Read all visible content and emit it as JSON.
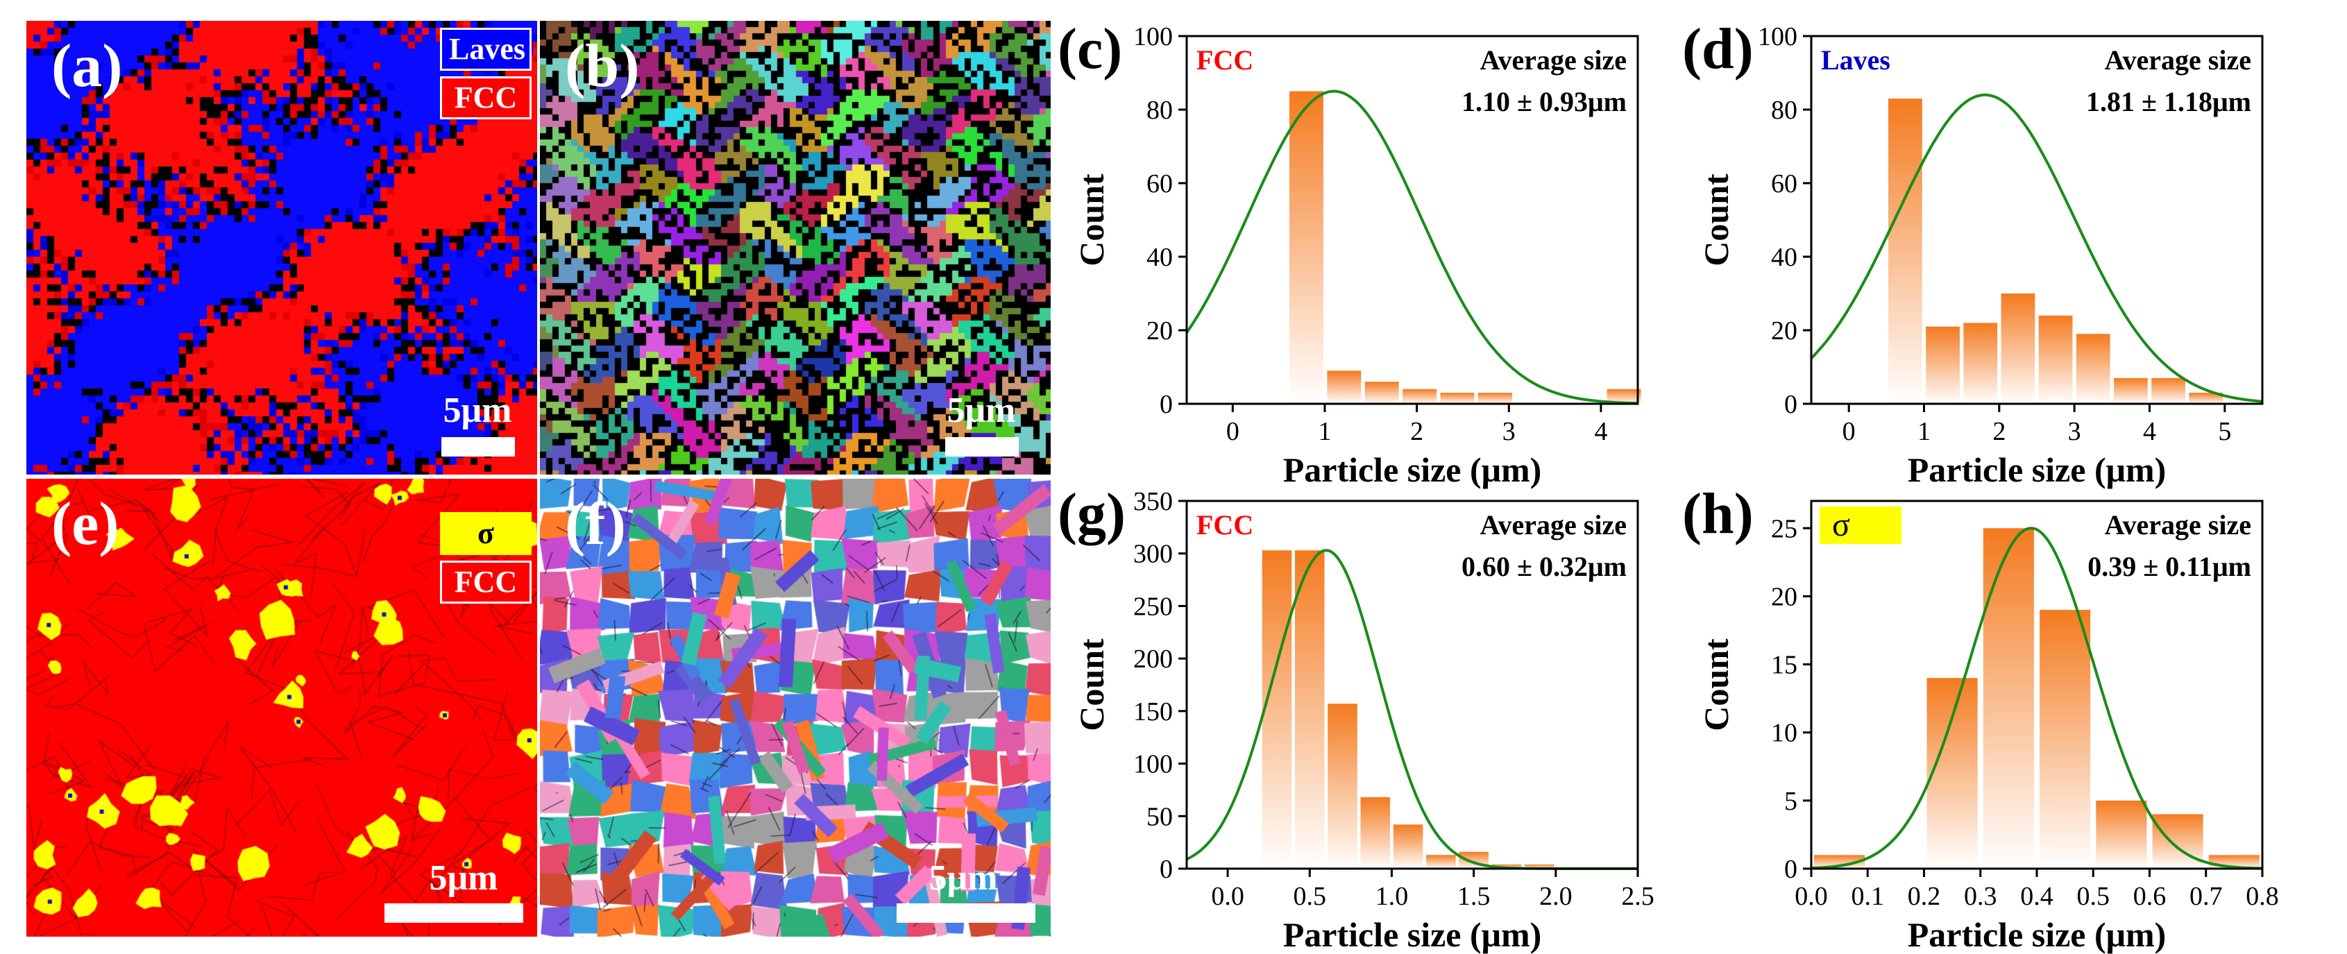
{
  "maps": [
    {
      "id": "a",
      "letter": "(a)",
      "legend": [
        {
          "text": "Laves",
          "bg": "#0000ff",
          "fg": "#ffffff"
        },
        {
          "text": "FCC",
          "bg": "#ff0000",
          "fg": "#ffffff"
        }
      ],
      "scale": "5μm",
      "scheme": "phase-laves"
    },
    {
      "id": "b",
      "letter": "(b)",
      "legend": [],
      "scale": "5μm",
      "scheme": "ipf-coarse"
    },
    {
      "id": "e",
      "letter": "(e)",
      "legend": [
        {
          "text": "σ",
          "bg": "#ffff00",
          "fg": "#000000"
        },
        {
          "text": "FCC",
          "bg": "#ff0000",
          "fg": "#ffffff"
        }
      ],
      "scale": "5μm",
      "scheme": "phase-sigma"
    },
    {
      "id": "f",
      "letter": "(f)",
      "legend": [],
      "scale": "5μm",
      "scheme": "ipf-fine"
    }
  ],
  "colors": {
    "bar": "#f47a1f",
    "fit": "#1a8c1a",
    "fcc_label": "#ff0000",
    "laves_label": "#0000cc",
    "sigma_bg": "#ffff00"
  },
  "chart_data": [
    {
      "panel": "(c)",
      "type": "bar",
      "phase_label": "FCC",
      "phase_style": "red-text",
      "stat_title": "Average  size",
      "stat_value": "1.10 ± 0.93μm",
      "xlabel": "Particle size (μm)",
      "ylabel": "Count",
      "xlim": [
        -0.5,
        4.4
      ],
      "ylim": [
        0,
        100
      ],
      "xticks": [
        0,
        1,
        2,
        3,
        4
      ],
      "xtick_labels": [
        "0",
        "1",
        "2",
        "3",
        "4"
      ],
      "yticks": [
        0,
        20,
        40,
        60,
        80,
        100
      ],
      "ytick_labels": [
        "0",
        "20",
        "40",
        "60",
        "80",
        "100"
      ],
      "bin_width": 0.41,
      "x": [
        0.8,
        1.21,
        1.62,
        2.03,
        2.44,
        2.85,
        4.25
      ],
      "values": [
        85,
        9,
        6,
        4,
        3,
        3,
        4
      ],
      "fit": {
        "mean": 1.1,
        "sd": 0.93,
        "peak": 85
      }
    },
    {
      "panel": "(d)",
      "type": "bar",
      "phase_label": "Laves",
      "phase_style": "blue-text",
      "stat_title": "Average  size",
      "stat_value": "1.81 ± 1.18μm",
      "xlabel": "Particle size (μm)",
      "ylabel": "Count",
      "xlim": [
        -0.5,
        5.5
      ],
      "ylim": [
        0,
        100
      ],
      "xticks": [
        0,
        1,
        2,
        3,
        4,
        5
      ],
      "xtick_labels": [
        "0",
        "1",
        "2",
        "3",
        "4",
        "5"
      ],
      "yticks": [
        0,
        20,
        40,
        60,
        80,
        100
      ],
      "ytick_labels": [
        "0",
        "20",
        "40",
        "60",
        "80",
        "100"
      ],
      "bin_width": 0.5,
      "x": [
        0.75,
        1.25,
        1.75,
        2.25,
        2.75,
        3.25,
        3.75,
        4.25,
        4.75
      ],
      "values": [
        83,
        21,
        22,
        30,
        24,
        19,
        7,
        7,
        3
      ],
      "fit": {
        "mean": 1.81,
        "sd": 1.18,
        "peak": 84
      }
    },
    {
      "panel": "(g)",
      "type": "bar",
      "phase_label": "FCC",
      "phase_style": "red-text",
      "stat_title": "Average  size",
      "stat_value": "0.60 ± 0.32μm",
      "xlabel": "Particle size (μm)",
      "ylabel": "Count",
      "xlim": [
        -0.25,
        2.5
      ],
      "ylim": [
        0,
        350
      ],
      "xticks": [
        0,
        0.5,
        1,
        1.5,
        2,
        2.5
      ],
      "xtick_labels": [
        "0.0",
        "0.5",
        "1.0",
        "1.5",
        "2.0",
        "2.5"
      ],
      "yticks": [
        0,
        50,
        100,
        150,
        200,
        250,
        300,
        350
      ],
      "ytick_labels": [
        "0",
        "50",
        "100",
        "150",
        "200",
        "250",
        "300",
        "350"
      ],
      "bin_width": 0.2,
      "x": [
        0.3,
        0.5,
        0.7,
        0.9,
        1.1,
        1.3,
        1.5,
        1.7,
        1.9
      ],
      "values": [
        303,
        303,
        157,
        68,
        42,
        13,
        16,
        4,
        4
      ],
      "fit": {
        "mean": 0.6,
        "sd": 0.32,
        "peak": 303
      }
    },
    {
      "panel": "(h)",
      "type": "bar",
      "phase_label": "σ",
      "phase_style": "yellow-box",
      "stat_title": "Average  size",
      "stat_value": "0.39 ± 0.11μm",
      "xlabel": "Particle size (μm)",
      "ylabel": "Count",
      "xlim": [
        0,
        0.8
      ],
      "ylim": [
        0,
        27
      ],
      "xticks": [
        0,
        0.1,
        0.2,
        0.3,
        0.4,
        0.5,
        0.6,
        0.7,
        0.8
      ],
      "xtick_labels": [
        "0.0",
        "0.1",
        "0.2",
        "0.3",
        "0.4",
        "0.5",
        "0.6",
        "0.7",
        "0.8"
      ],
      "yticks": [
        0,
        5,
        10,
        15,
        20,
        25
      ],
      "ytick_labels": [
        "0",
        "5",
        "10",
        "15",
        "20",
        "25"
      ],
      "bin_width": 0.1,
      "x": [
        0.05,
        0.25,
        0.35,
        0.45,
        0.55,
        0.65,
        0.75
      ],
      "values": [
        1,
        14,
        25,
        19,
        5,
        4,
        1
      ],
      "fit": {
        "mean": 0.39,
        "sd": 0.11,
        "peak": 25
      }
    }
  ]
}
